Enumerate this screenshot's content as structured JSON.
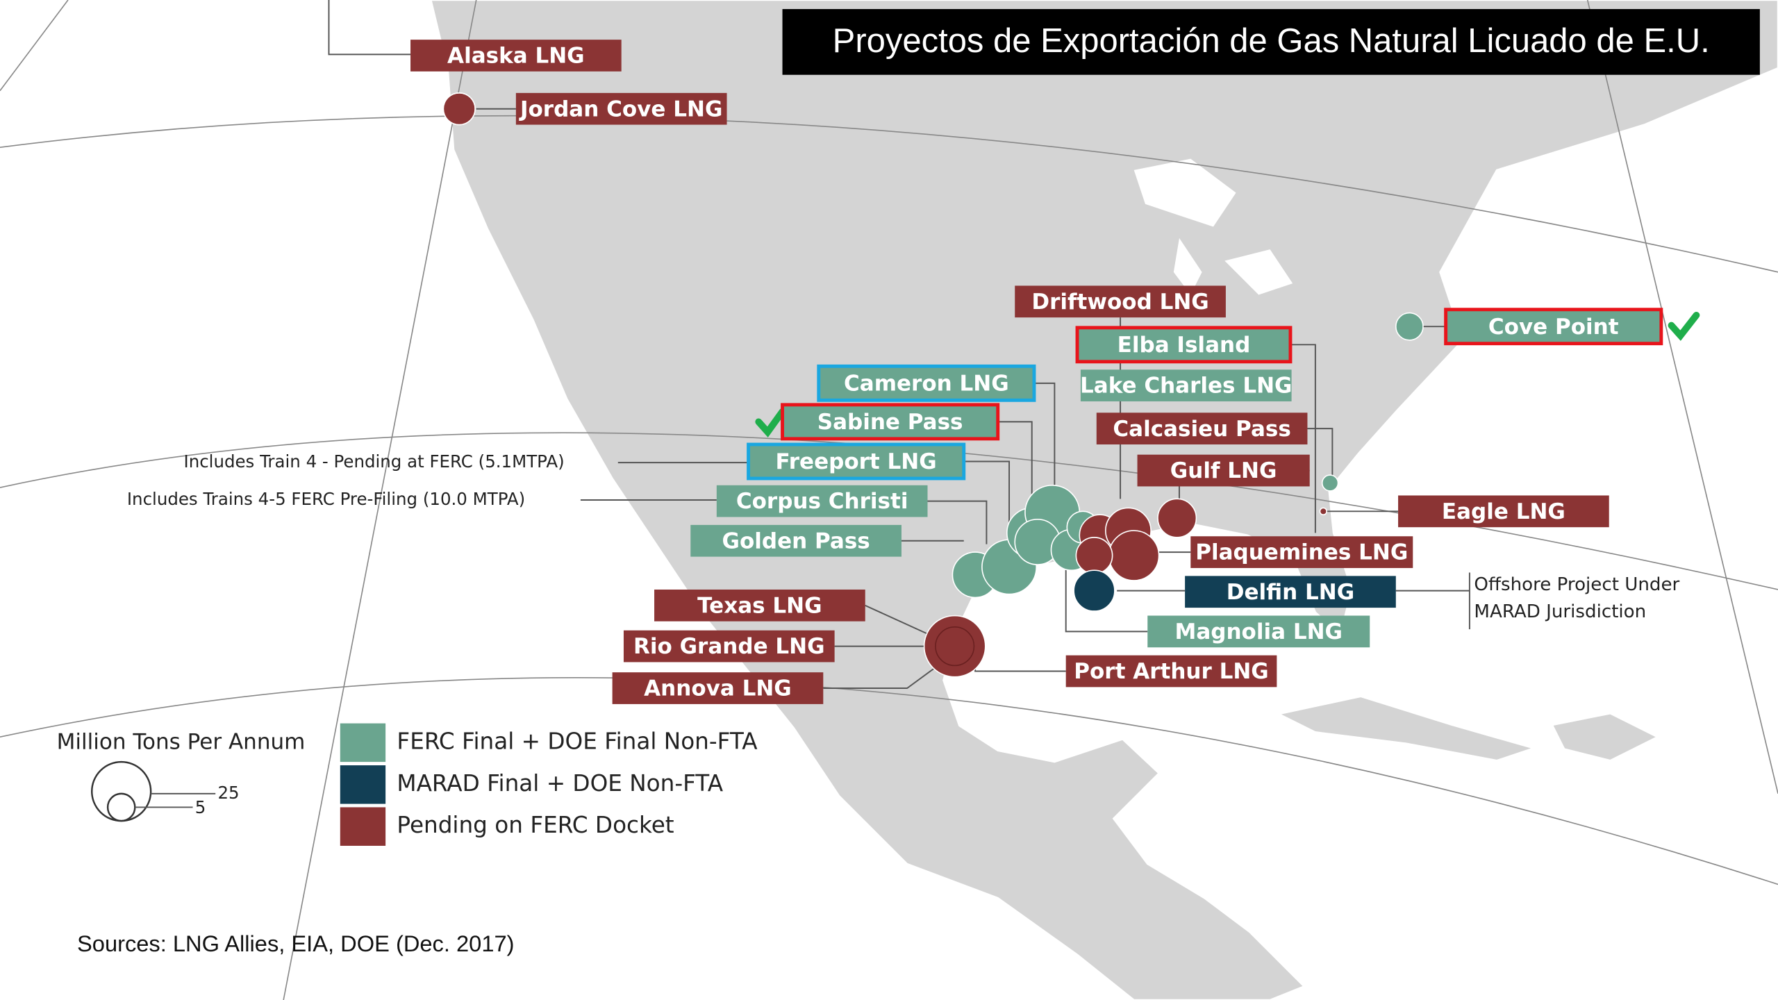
{
  "title": "Proyectos de Exportación  de Gas Natural Licuado de E.U.",
  "projects": [
    {
      "label": "Alaska LNG",
      "color": "#8b3434"
    },
    {
      "label": "Jordan Cove LNG",
      "color": "#8b3434"
    },
    {
      "label": "Driftwood LNG",
      "color": "#8b3434"
    },
    {
      "label": "Elba Island",
      "color": "#6aa58f",
      "outline": "#e8141b"
    },
    {
      "label": "Cove Point",
      "color": "#6aa58f",
      "outline": "#e8141b"
    },
    {
      "label": "Cameron LNG",
      "color": "#6aa58f",
      "outline": "#1aa7e0"
    },
    {
      "label": "Lake Charles LNG",
      "color": "#6aa58f"
    },
    {
      "label": "Sabine Pass",
      "color": "#6aa58f",
      "outline": "#e8141b"
    },
    {
      "label": "Calcasieu Pass",
      "color": "#8b3434"
    },
    {
      "label": "Freeport  LNG",
      "color": "#6aa58f",
      "outline": "#1aa7e0"
    },
    {
      "label": "Gulf LNG",
      "color": "#8b3434"
    },
    {
      "label": "Corpus  Christi",
      "color": "#6aa58f"
    },
    {
      "label": "Eagle LNG",
      "color": "#8b3434"
    },
    {
      "label": "Golden Pass",
      "color": "#6aa58f"
    },
    {
      "label": "Plaquemines LNG",
      "color": "#8b3434"
    },
    {
      "label": "Texas LNG",
      "color": "#8b3434"
    },
    {
      "label": "Delfin LNG",
      "color": "#123f55"
    },
    {
      "label": "Magnolia LNG",
      "color": "#6aa58f"
    },
    {
      "label": "Rio Grande LNG",
      "color": "#8b3434"
    },
    {
      "label": "Port Arthur LNG",
      "color": "#8b3434"
    },
    {
      "label": "Annova LNG",
      "color": "#8b3434"
    }
  ],
  "notes": [
    "Includes Train 4 - Pending at FERC (5.1MTPA)",
    "Includes Trains 4-5 FERC Pre-Filing (10.0 MTPA)",
    "Offshore Project Under",
    "MARAD Jurisdiction"
  ],
  "legend": {
    "title": "Million Tons Per Annum",
    "sizes": [
      "25",
      "5"
    ],
    "items": [
      {
        "label": "FERC Final + DOE Final Non-FTA",
        "color": "#6aa58f"
      },
      {
        "label": "MARAD Final + DOE Non-FTA",
        "color": "#123f55"
      },
      {
        "label": "Pending on FERC Docket",
        "color": "#8b3434"
      }
    ]
  },
  "source": "Sources: LNG Allies, EIA, DOE (Dec. 2017)"
}
